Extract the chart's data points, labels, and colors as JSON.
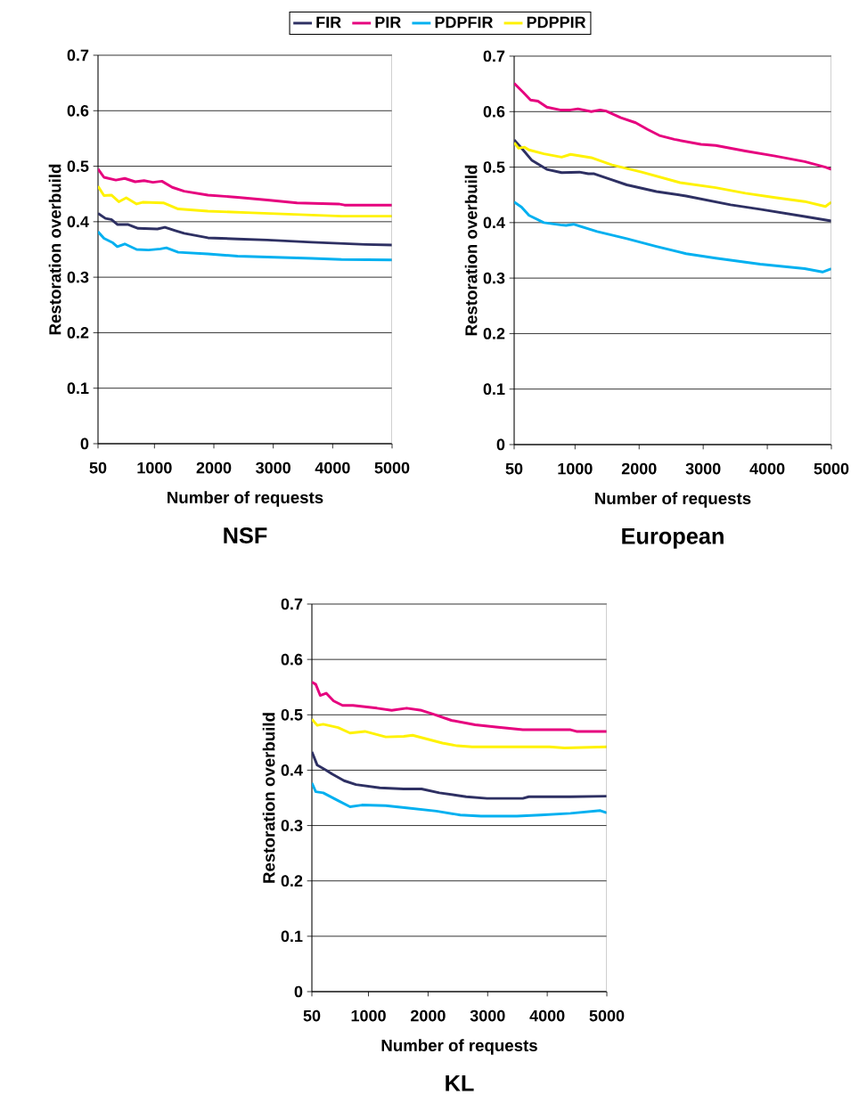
{
  "chart_data": [
    {
      "type": "line",
      "title": "NSF",
      "xlabel": "Number of requests",
      "ylabel": "Restoration overbuild",
      "xlim": [
        50,
        5000
      ],
      "ylim": [
        0,
        0.7
      ],
      "xticks": [
        50,
        1000,
        2000,
        3000,
        4000,
        5000
      ],
      "yticks": [
        0,
        0.1,
        0.2,
        0.3,
        0.4,
        0.5,
        0.6,
        0.7
      ],
      "grid": "y",
      "legend": "top",
      "series": [
        {
          "name": "FIR",
          "color": "#2e3063",
          "x": [
            50,
            175,
            275,
            375,
            550,
            725,
            1050,
            1175,
            1350,
            1500,
            1900,
            2400,
            2900,
            3650,
            4550,
            5000
          ],
          "values": [
            0.415,
            0.406,
            0.404,
            0.395,
            0.395,
            0.388,
            0.387,
            0.39,
            0.384,
            0.379,
            0.371,
            0.369,
            0.367,
            0.363,
            0.359,
            0.358
          ]
        },
        {
          "name": "PIR",
          "color": "#e6007e",
          "x": [
            50,
            150,
            350,
            500,
            675,
            825,
            975,
            1125,
            1300,
            1500,
            1900,
            2400,
            2900,
            3400,
            4100,
            4200,
            5000
          ],
          "values": [
            0.495,
            0.48,
            0.475,
            0.478,
            0.472,
            0.474,
            0.471,
            0.473,
            0.462,
            0.455,
            0.448,
            0.444,
            0.439,
            0.434,
            0.432,
            0.43,
            0.43
          ]
        },
        {
          "name": "PDPFIR",
          "color": "#00b0f0",
          "x": [
            50,
            150,
            300,
            375,
            500,
            700,
            900,
            1100,
            1200,
            1400,
            1900,
            2400,
            3650,
            4150,
            5000
          ],
          "values": [
            0.382,
            0.37,
            0.362,
            0.355,
            0.36,
            0.35,
            0.349,
            0.351,
            0.353,
            0.345,
            0.342,
            0.338,
            0.334,
            0.332,
            0.331
          ]
        },
        {
          "name": "PDPPIR",
          "color": "#fff200",
          "x": [
            50,
            150,
            275,
            400,
            525,
            700,
            800,
            1150,
            1400,
            1900,
            2650,
            3150,
            4150,
            5000
          ],
          "values": [
            0.464,
            0.447,
            0.448,
            0.436,
            0.443,
            0.432,
            0.435,
            0.434,
            0.423,
            0.419,
            0.416,
            0.414,
            0.41,
            0.41
          ]
        }
      ]
    },
    {
      "type": "line",
      "title": "European",
      "xlabel": "Number of requests",
      "ylabel": "Restoration overbuild",
      "xlim": [
        50,
        5000
      ],
      "ylim": [
        0,
        0.7
      ],
      "xticks": [
        50,
        1000,
        2000,
        3000,
        4000,
        5000
      ],
      "yticks": [
        0,
        0.1,
        0.2,
        0.3,
        0.4,
        0.5,
        0.6,
        0.7
      ],
      "grid": "y",
      "series": [
        {
          "color": "#2e3063",
          "x": [
            50,
            189,
            328,
            559,
            791,
            1068,
            1207,
            1299,
            1577,
            1808,
            2270,
            2733,
            3427,
            3889,
            4583,
            5000
          ],
          "values": [
            0.549,
            0.531,
            0.512,
            0.496,
            0.49,
            0.491,
            0.488,
            0.488,
            0.477,
            0.468,
            0.456,
            0.448,
            0.432,
            0.424,
            0.411,
            0.403
          ]
        },
        {
          "color": "#e6007e",
          "x": [
            50,
            189,
            305,
            421,
            560,
            768,
            930,
            1045,
            1253,
            1392,
            1484,
            1715,
            1946,
            2131,
            2316,
            2548,
            2964,
            3195,
            3658,
            4121,
            4583,
            4907,
            5000
          ],
          "values": [
            0.651,
            0.635,
            0.621,
            0.619,
            0.608,
            0.603,
            0.603,
            0.605,
            0.6,
            0.603,
            0.601,
            0.589,
            0.58,
            0.568,
            0.557,
            0.55,
            0.541,
            0.539,
            0.529,
            0.52,
            0.51,
            0.5,
            0.496
          ]
        },
        {
          "color": "#00b0f0",
          "x": [
            50,
            166,
            282,
            513,
            768,
            860,
            976,
            1345,
            1808,
            2270,
            2733,
            3195,
            3889,
            4583,
            4861,
            5000
          ],
          "values": [
            0.437,
            0.428,
            0.413,
            0.4,
            0.396,
            0.395,
            0.397,
            0.384,
            0.371,
            0.357,
            0.344,
            0.336,
            0.325,
            0.317,
            0.311,
            0.317
          ]
        },
        {
          "color": "#fff200",
          "x": [
            50,
            119,
            212,
            281,
            513,
            791,
            930,
            1253,
            1577,
            2039,
            2640,
            3195,
            3658,
            4121,
            4583,
            4907,
            5000
          ],
          "values": [
            0.544,
            0.534,
            0.536,
            0.531,
            0.524,
            0.518,
            0.523,
            0.517,
            0.504,
            0.491,
            0.472,
            0.463,
            0.453,
            0.445,
            0.438,
            0.429,
            0.437
          ]
        }
      ]
    },
    {
      "type": "line",
      "title": "KL",
      "xlabel": "Number of requests",
      "ylabel": "Restoration overbuild",
      "xlim": [
        50,
        5000
      ],
      "ylim": [
        0,
        0.7
      ],
      "xticks": [
        50,
        1000,
        2000,
        3000,
        4000,
        5000
      ],
      "yticks": [
        0,
        0.1,
        0.2,
        0.3,
        0.4,
        0.5,
        0.6,
        0.7
      ],
      "grid": "y",
      "series": [
        {
          "color": "#2e3063",
          "x": [
            50,
            140,
            290,
            390,
            590,
            790,
            1190,
            1590,
            1890,
            2190,
            2640,
            2990,
            3590,
            3690,
            4390,
            5000
          ],
          "values": [
            0.433,
            0.409,
            0.4,
            0.393,
            0.381,
            0.374,
            0.368,
            0.366,
            0.366,
            0.359,
            0.352,
            0.349,
            0.349,
            0.352,
            0.352,
            0.353
          ]
        },
        {
          "color": "#e6007e",
          "x": [
            50,
            115,
            190,
            290,
            415,
            565,
            740,
            1140,
            1390,
            1640,
            1890,
            2090,
            2390,
            2790,
            3140,
            3590,
            4390,
            4490,
            5000
          ],
          "values": [
            0.559,
            0.555,
            0.535,
            0.539,
            0.525,
            0.517,
            0.517,
            0.512,
            0.508,
            0.512,
            0.508,
            0.501,
            0.49,
            0.482,
            0.478,
            0.473,
            0.473,
            0.47,
            0.47
          ]
        },
        {
          "color": "#00b0f0",
          "x": [
            50,
            115,
            240,
            490,
            690,
            890,
            1290,
            1640,
            2140,
            2540,
            2890,
            3490,
            3890,
            4390,
            4890,
            5000
          ],
          "values": [
            0.377,
            0.361,
            0.359,
            0.345,
            0.334,
            0.337,
            0.336,
            0.332,
            0.326,
            0.319,
            0.317,
            0.317,
            0.319,
            0.322,
            0.327,
            0.323
          ]
        },
        {
          "color": "#fff200",
          "x": [
            50,
            140,
            240,
            490,
            690,
            940,
            1290,
            1590,
            1740,
            1990,
            2240,
            2490,
            2740,
            3390,
            4040,
            4290,
            5000
          ],
          "values": [
            0.492,
            0.481,
            0.483,
            0.477,
            0.467,
            0.47,
            0.46,
            0.461,
            0.463,
            0.456,
            0.449,
            0.444,
            0.442,
            0.442,
            0.442,
            0.44,
            0.442
          ]
        }
      ]
    }
  ]
}
